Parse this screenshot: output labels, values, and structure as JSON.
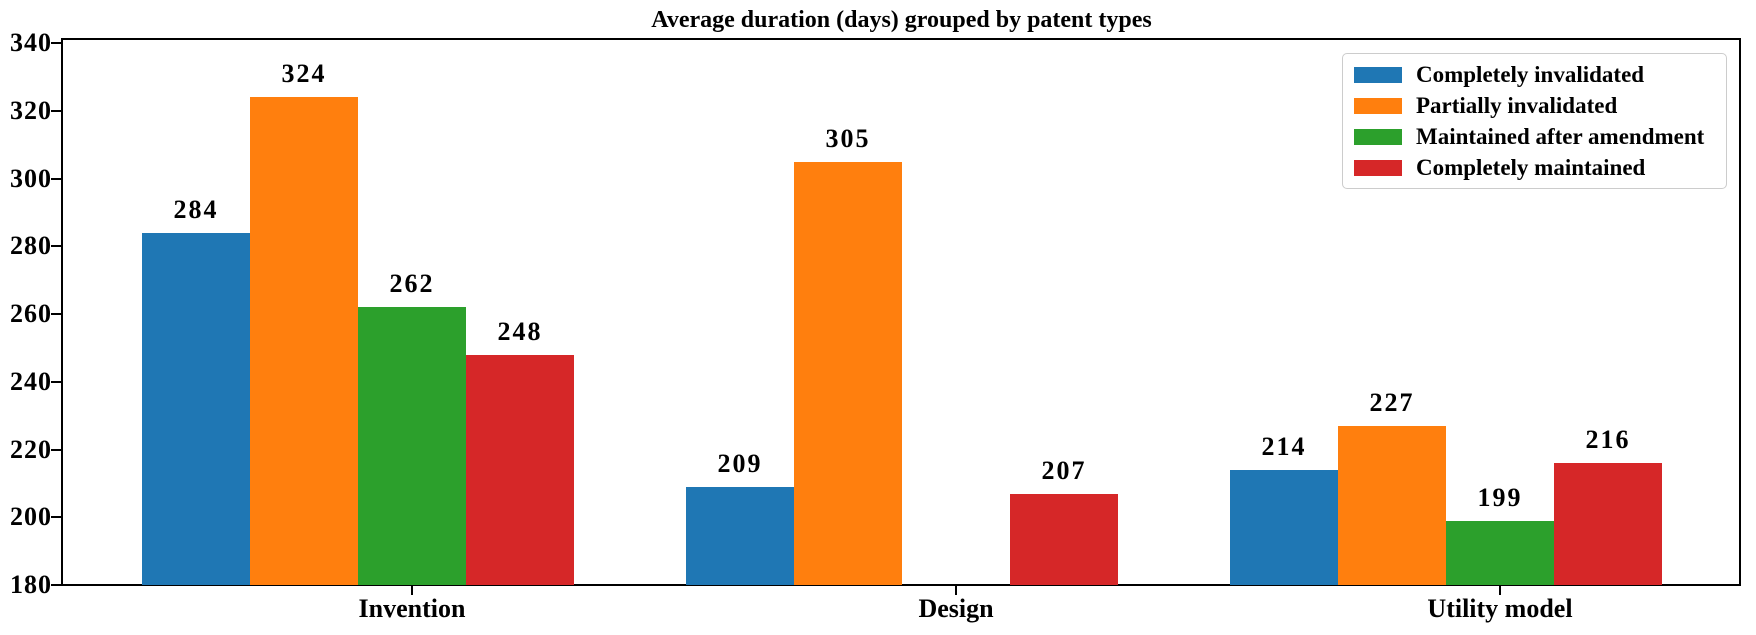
{
  "figure": {
    "background": "#ffffff",
    "text_color": "#000000",
    "axis_color": "#000000",
    "legend_border_color": "#cccccc"
  },
  "chart_data": {
    "type": "bar",
    "title": "Average duration (days) grouped by patent types",
    "categories": [
      "Invention",
      "Design",
      "Utility model"
    ],
    "series": [
      {
        "name": "Completely invalidated",
        "color": "#1f77b4",
        "values": [
          284,
          209,
          214
        ]
      },
      {
        "name": "Partially invalidated",
        "color": "#ff7f0e",
        "values": [
          324,
          305,
          227
        ]
      },
      {
        "name": "Maintained after amendment",
        "color": "#2ca02c",
        "values": [
          262,
          null,
          199
        ]
      },
      {
        "name": "Completely maintained",
        "color": "#d62728",
        "values": [
          248,
          207,
          216
        ]
      }
    ],
    "xlabel": "",
    "ylabel": "",
    "ylim": [
      180,
      341.6
    ],
    "yticks": [
      180,
      200,
      220,
      240,
      260,
      280,
      300,
      320,
      340
    ],
    "bar_value_labels": true,
    "grid": false,
    "legend_position": "upper right"
  }
}
